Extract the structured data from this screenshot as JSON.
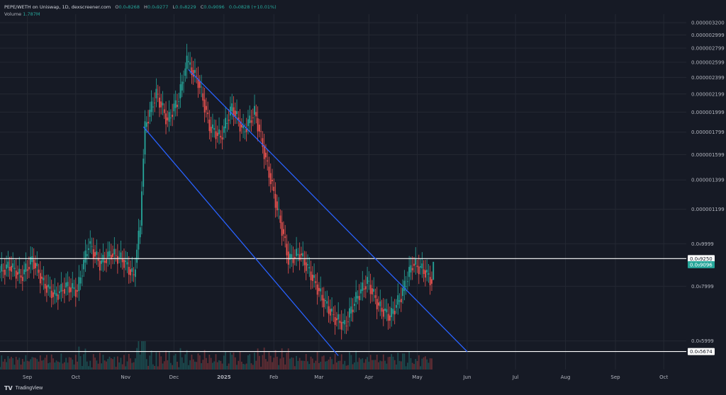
{
  "legend": {
    "symbol": "PEPE/WETH on Uniswap, 1D, dexscreener.com",
    "open_label": "O",
    "open": "0.0₉8268",
    "high_label": "H",
    "high": "0.0₉9277",
    "low_label": "L",
    "low": "0.0₉8229",
    "close_label": "C",
    "close": "0.0₉9096",
    "change": "0.0₉0828 (+10.01%)",
    "volume_label": "Volume",
    "volume": "1.787M"
  },
  "brand": {
    "icon": "tradingview-logo-icon",
    "text": "TradingView"
  },
  "colors": {
    "background": "#161a25",
    "grid": "#242833",
    "up": "#26a69a",
    "down": "#ef5350",
    "channel": "#2962ff",
    "hline": "#ffffff",
    "text": "#b2b5be"
  },
  "chart_data": {
    "type": "candlestick",
    "title": "PEPE/WETH on Uniswap, 1D, dexscreener.com",
    "x_axis": {
      "ticks": [
        "Sep",
        "Oct",
        "Nov",
        "Dec",
        "2025",
        "Feb",
        "Mar",
        "Apr",
        "May",
        "Jun",
        "Jul",
        "Aug",
        "Sep",
        "Oct"
      ],
      "tick_dates": [
        "2024-09-01",
        "2024-10-01",
        "2024-11-01",
        "2024-12-01",
        "2025-01-01",
        "2025-02-01",
        "2025-03-01",
        "2025-04-01",
        "2025-05-01",
        "2025-06-01",
        "2025-07-01",
        "2025-08-01",
        "2025-09-01",
        "2025-10-01"
      ],
      "range": [
        "2024-08-15",
        "2025-10-15"
      ]
    },
    "y_axis": {
      "ticks": [
        "0.000003200",
        "0.000002999",
        "0.000002799",
        "0.000002599",
        "0.000002399",
        "0.000002199",
        "0.000001999",
        "0.000001799",
        "0.000001599",
        "0.000001399",
        "0.000001199",
        "0.0₉9999",
        "0.0₉7999",
        "0.0₉5999"
      ],
      "tick_values": [
        3.2e-06,
        2.999e-06,
        2.799e-06,
        2.599e-06,
        2.399e-06,
        2.199e-06,
        1.999e-06,
        1.799e-06,
        1.599e-06,
        1.399e-06,
        1.199e-06,
        9.999e-07,
        7.999e-07,
        5.999e-07
      ],
      "scale": "log"
    },
    "price_labels": [
      {
        "text": "0.0₉9250",
        "value": 9.25e-07,
        "style": "white"
      },
      {
        "text": "0.0₉9096",
        "value": 9.096e-07,
        "style": "green"
      },
      {
        "text": "0.0₉5674",
        "value": 5.674e-07,
        "style": "white"
      }
    ],
    "horizontal_lines": [
      9.25e-07,
      5.674e-07
    ],
    "channel": {
      "upper": [
        [
          "2024-12-10",
          2.5e-06
        ],
        [
          "2025-06-01",
          5.67e-07
        ]
      ],
      "lower": [
        [
          "2024-11-12",
          1.85e-06
        ],
        [
          "2025-03-13",
          5.55e-07
        ]
      ]
    },
    "candles": [
      [
        "2024-08-15",
        8.6e-07,
        8.9e-07
      ],
      [
        "2024-08-22",
        8.9e-07,
        8.4e-07
      ],
      [
        "2024-08-29",
        8.4e-07,
        9.2e-07
      ],
      [
        "2024-09-05",
        9.2e-07,
        8.1e-07
      ],
      [
        "2024-09-12",
        8.1e-07,
        7.6e-07
      ],
      [
        "2024-09-19",
        7.6e-07,
        8e-07
      ],
      [
        "2024-09-26",
        8e-07,
        7.8e-07
      ],
      [
        "2024-10-03",
        7.8e-07,
        1e-06
      ],
      [
        "2024-10-10",
        1e-06,
        9e-07
      ],
      [
        "2024-10-17",
        9e-07,
        9.5e-07
      ],
      [
        "2024-10-24",
        9.5e-07,
        9.2e-07
      ],
      [
        "2024-10-31",
        9.2e-07,
        8.4e-07
      ],
      [
        "2024-11-07",
        8.4e-07,
        1.1e-06
      ],
      [
        "2024-11-11",
        1.1e-06,
        1.85e-06
      ],
      [
        "2024-11-14",
        1.85e-06,
        2.2e-06
      ],
      [
        "2024-11-21",
        2.2e-06,
        1.9e-06
      ],
      [
        "2024-11-28",
        1.9e-06,
        2.15e-06
      ],
      [
        "2024-12-05",
        2.15e-06,
        2.6e-06
      ],
      [
        "2024-12-10",
        2.6e-06,
        2.35e-06
      ],
      [
        "2024-12-17",
        2.35e-06,
        1.85e-06
      ],
      [
        "2024-12-24",
        1.85e-06,
        1.75e-06
      ],
      [
        "2024-12-31",
        1.75e-06,
        2.05e-06
      ],
      [
        "2025-01-07",
        2.05e-06,
        1.8e-06
      ],
      [
        "2025-01-14",
        1.8e-06,
        2e-06
      ],
      [
        "2025-01-21",
        2e-06,
        1.55e-06
      ],
      [
        "2025-01-28",
        1.55e-06,
        1.2e-06
      ],
      [
        "2025-02-04",
        1.2e-06,
        9.2e-07
      ],
      [
        "2025-02-11",
        9.2e-07,
        9.5e-07
      ],
      [
        "2025-02-18",
        9.5e-07,
        8.5e-07
      ],
      [
        "2025-02-25",
        8.5e-07,
        7.5e-07
      ],
      [
        "2025-03-04",
        7.5e-07,
        6.8e-07
      ],
      [
        "2025-03-11",
        6.8e-07,
        6.5e-07
      ],
      [
        "2025-03-18",
        6.5e-07,
        7.5e-07
      ],
      [
        "2025-03-25",
        7.5e-07,
        8.2e-07
      ],
      [
        "2025-04-01",
        8.2e-07,
        7.2e-07
      ],
      [
        "2025-04-08",
        7.2e-07,
        6.8e-07
      ],
      [
        "2025-04-15",
        6.8e-07,
        7.6e-07
      ],
      [
        "2025-04-22",
        7.6e-07,
        9e-07
      ],
      [
        "2025-04-29",
        9e-07,
        8.7e-07
      ],
      [
        "2025-05-06",
        8.7e-07,
        8.2e-07
      ],
      [
        "2025-05-11",
        8.268e-07,
        9.096e-07
      ]
    ]
  }
}
